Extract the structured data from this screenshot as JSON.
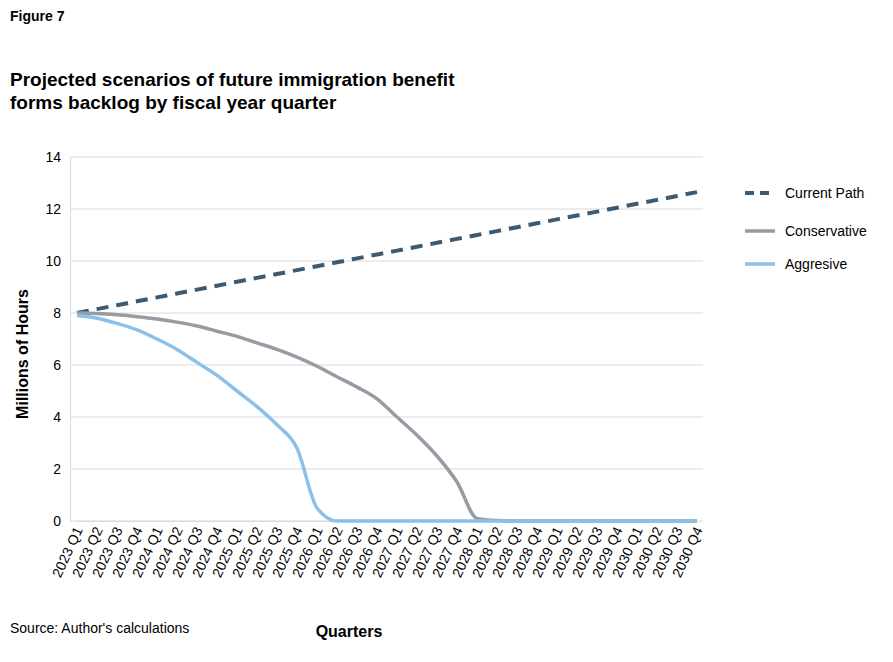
{
  "chart_data": {
    "type": "line",
    "figure_label": "Figure 7",
    "title": "Projected scenarios of future immigration benefit forms backlog by fiscal year quarter",
    "x_label": "Quarters",
    "y_label": "Millions of Hours",
    "source": "Source: Author's calculations",
    "categories": [
      "2023 Q1",
      "2023 Q2",
      "2023 Q3",
      "2023 Q4",
      "2024 Q1",
      "2024 Q2",
      "2024 Q3",
      "2024 Q4",
      "2025 Q1",
      "2025 Q2",
      "2025 Q3",
      "2025 Q4",
      "2026 Q1",
      "2026 Q2",
      "2026 Q3",
      "2026 Q4",
      "2027 Q1",
      "2027 Q2",
      "2027 Q3",
      "2027 Q4",
      "2028 Q1",
      "2028 Q2",
      "2028 Q3",
      "2028 Q4",
      "2029 Q1",
      "2029 Q2",
      "2029 Q3",
      "2029 Q4",
      "2030 Q1",
      "2030 Q2",
      "2030 Q3",
      "2030 Q4"
    ],
    "series": [
      {
        "name": "Current Path",
        "color": "#3d5a73",
        "line_style": "dashed",
        "values": [
          8.0,
          8.15,
          8.3,
          8.45,
          8.6,
          8.75,
          8.9,
          9.05,
          9.2,
          9.35,
          9.5,
          9.65,
          9.8,
          9.95,
          10.1,
          10.25,
          10.4,
          10.55,
          10.7,
          10.85,
          11.0,
          11.15,
          11.3,
          11.45,
          11.6,
          11.75,
          11.9,
          12.05,
          12.2,
          12.35,
          12.5,
          12.65
        ]
      },
      {
        "name": "Conservative",
        "color": "#959ca3",
        "line_style": "solid",
        "values": [
          8.0,
          7.98,
          7.93,
          7.86,
          7.77,
          7.65,
          7.5,
          7.3,
          7.1,
          6.85,
          6.6,
          6.3,
          5.95,
          5.55,
          5.15,
          4.7,
          4.0,
          3.3,
          2.5,
          1.5,
          0.1,
          0.02,
          0,
          0,
          0,
          0,
          0,
          0,
          0,
          0,
          0,
          0
        ]
      },
      {
        "name": "Aggresive",
        "color": "#8cc0e8",
        "line_style": "solid",
        "values": [
          7.9,
          7.8,
          7.6,
          7.35,
          7.0,
          6.6,
          6.1,
          5.6,
          5.0,
          4.4,
          3.7,
          2.8,
          0.5,
          0,
          0,
          0,
          0,
          0,
          0,
          0,
          0,
          0,
          0,
          0,
          0,
          0,
          0,
          0,
          0,
          0,
          0,
          0
        ]
      }
    ],
    "ylim": [
      0,
      14
    ],
    "yticks": [
      0,
      2,
      4,
      6,
      8,
      10,
      12,
      14
    ],
    "grid": true,
    "legend": "right"
  }
}
